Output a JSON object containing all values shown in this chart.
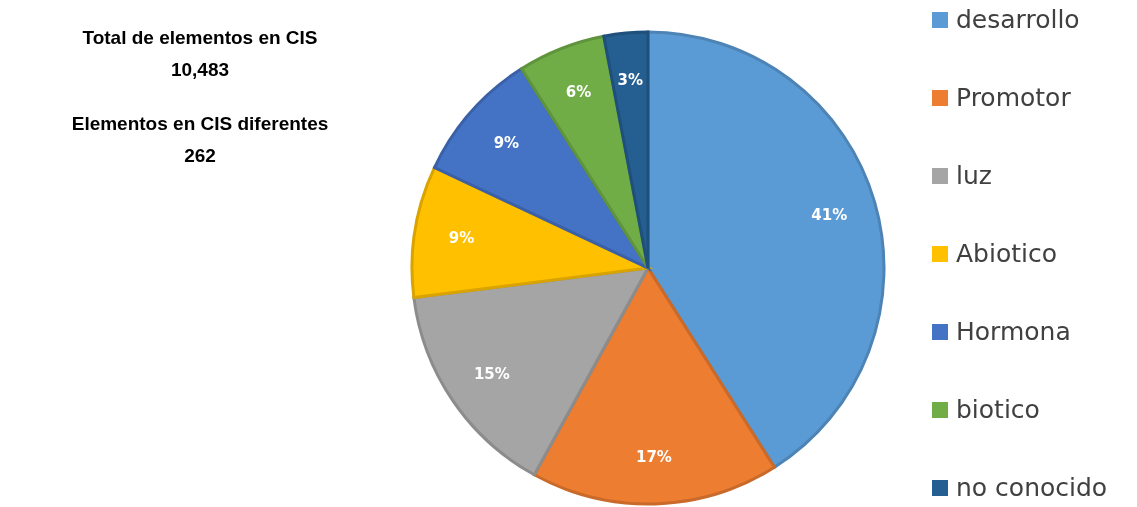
{
  "chart_data": {
    "type": "pie",
    "categories": [
      "desarrollo",
      "Promotor",
      "luz",
      "Abiotico",
      "Hormona",
      "biotico",
      "no conocido"
    ],
    "values": [
      41,
      17,
      15,
      9,
      9,
      6,
      3
    ],
    "value_labels": [
      "41%",
      "17%",
      "15%",
      "9%",
      "9%",
      "6%",
      "3%"
    ],
    "colors": [
      "#5b9bd5",
      "#ed7d31",
      "#a5a5a5",
      "#ffc000",
      "#4472c4",
      "#70ad47",
      "#255e91"
    ],
    "legend": "right",
    "annotations": [
      "Total de elementos en CIS",
      "10,483",
      "Elementos en CIS diferentes",
      "262"
    ]
  }
}
